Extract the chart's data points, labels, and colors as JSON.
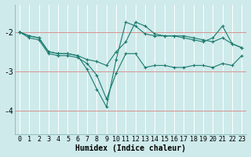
{
  "bg_color": "#ceeaea",
  "line_color": "#1a7a6e",
  "grid_color": "#b8d8d8",
  "red_line_color": "#d08080",
  "xlabel": "Humidex (Indice chaleur)",
  "xlabel_fontsize": 7,
  "tick_fontsize": 6,
  "ylim": [
    -4.6,
    -1.3
  ],
  "xlim": [
    -0.5,
    23.5
  ],
  "yticks": [
    -4,
    -3,
    -2
  ],
  "xticks": [
    0,
    1,
    2,
    3,
    4,
    5,
    6,
    7,
    8,
    9,
    10,
    11,
    12,
    13,
    14,
    15,
    16,
    17,
    18,
    19,
    20,
    21,
    22,
    23
  ],
  "line1_x": [
    0,
    1,
    2,
    3,
    4,
    5,
    6,
    7,
    8,
    9,
    10,
    11,
    12,
    13,
    14,
    15,
    16,
    17,
    18,
    19,
    20,
    21,
    22,
    23
  ],
  "line1_y": [
    -2.0,
    -2.1,
    -2.15,
    -2.5,
    -2.55,
    -2.55,
    -2.6,
    -2.7,
    -2.75,
    -2.85,
    -2.5,
    -2.25,
    -1.75,
    -1.85,
    -2.05,
    -2.1,
    -2.1,
    -2.1,
    -2.15,
    -2.2,
    -2.25,
    -2.15,
    -2.3,
    -2.4
  ],
  "line2_x": [
    0,
    1,
    2,
    3,
    4,
    5,
    6,
    7,
    8,
    9,
    10,
    11,
    12,
    13,
    14,
    15,
    16,
    17,
    18,
    19,
    20,
    21,
    22,
    23
  ],
  "line2_y": [
    -2.0,
    -2.15,
    -2.2,
    -2.55,
    -2.6,
    -2.6,
    -2.65,
    -2.8,
    -3.1,
    -3.7,
    -3.05,
    -2.55,
    -2.55,
    -2.9,
    -2.85,
    -2.85,
    -2.9,
    -2.9,
    -2.85,
    -2.85,
    -2.9,
    -2.8,
    -2.85,
    -2.6
  ],
  "line3_x": [
    0,
    1,
    2,
    3,
    4,
    5,
    6,
    7,
    8,
    9,
    10,
    11,
    12,
    13,
    14,
    15,
    16,
    17,
    18,
    19,
    20,
    21,
    22,
    23
  ],
  "line3_y": [
    -2.0,
    -2.1,
    -2.15,
    -2.5,
    -2.55,
    -2.55,
    -2.6,
    -2.95,
    -3.45,
    -3.9,
    -2.7,
    -1.75,
    -1.85,
    -2.05,
    -2.1,
    -2.1,
    -2.1,
    -2.15,
    -2.2,
    -2.25,
    -2.15,
    -1.85,
    -2.3,
    -2.4
  ]
}
